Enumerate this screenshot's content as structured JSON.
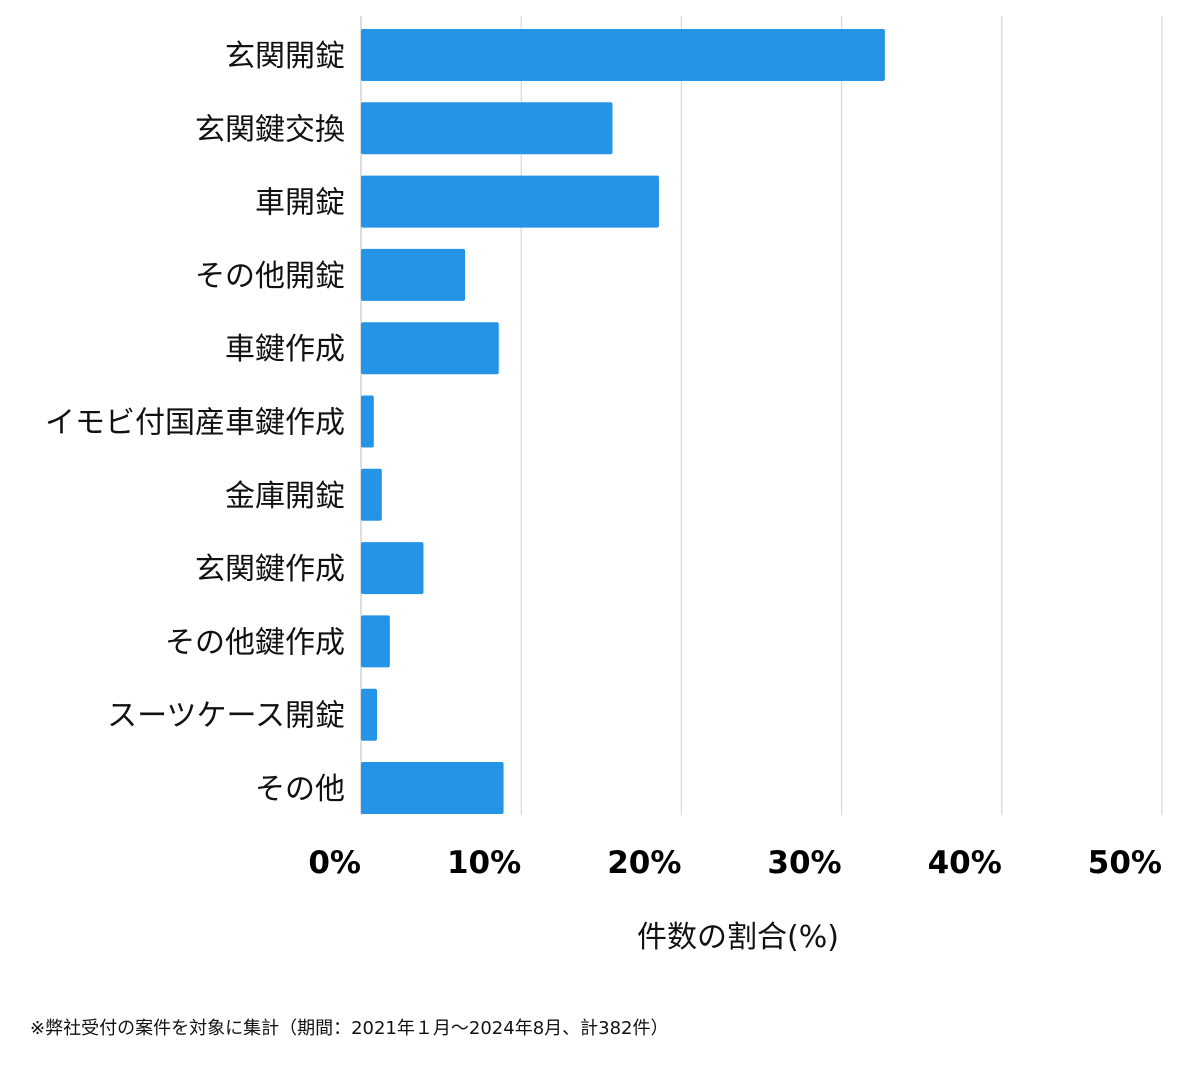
{
  "chart_data": {
    "type": "bar",
    "orientation": "horizontal",
    "categories": [
      "玄関開錠",
      "玄関鍵交換",
      "車開錠",
      "その他開錠",
      "車鍵作成",
      "イモビ付国産車鍵作成",
      "金庫開錠",
      "玄関鍵作成",
      "その他鍵作成",
      "スーツケース開錠",
      "その他"
    ],
    "values": [
      32.7,
      15.7,
      18.6,
      6.5,
      8.6,
      0.8,
      1.3,
      3.9,
      1.8,
      1.0,
      8.9
    ],
    "xlim": [
      0,
      50
    ],
    "xticks": [
      0,
      10,
      20,
      30,
      40,
      50
    ],
    "xtick_labels": [
      "0%",
      "10%",
      "20%",
      "30%",
      "40%",
      "50%"
    ],
    "xlabel": "件数の割合(%)",
    "ylabel": "",
    "title": "",
    "grid": "vertical",
    "bar_color": "#2594e6",
    "grid_color": "#d9d9d9"
  },
  "footnote": "※弊社受付の案件を対象に集計（期間：2021年１月〜2024年8月、計382件）"
}
